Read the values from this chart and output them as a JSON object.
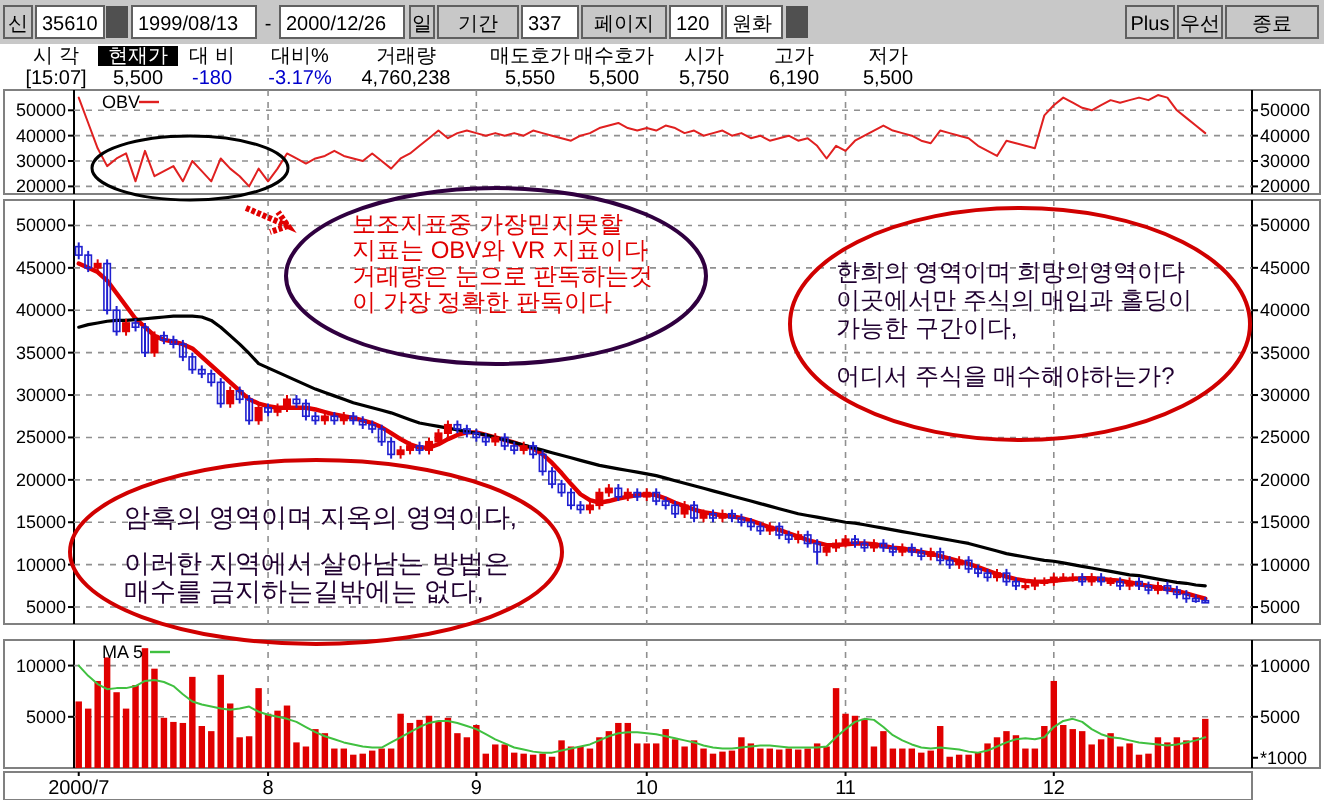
{
  "chart_data": [
    {
      "type": "other",
      "annotations": [
        "신",
        "35610",
        "1999/08/13",
        "-",
        "2000/12/26",
        "일",
        "기간",
        "337",
        "페이지",
        "120",
        "원화",
        "Plus",
        "우선",
        "종료",
        "시 각",
        "현재가",
        "대 비",
        "대비%",
        "거래량",
        "매도호가",
        "매수호가",
        "시가",
        "고가",
        "저가",
        "[15:07]",
        "5,500",
        "-180",
        "-3.17%",
        "4,760,238",
        "5,550",
        "5,500",
        "5,750",
        "6,190",
        "5,500"
      ]
    },
    {
      "type": "line",
      "categories": [
        "2000/7",
        null,
        null,
        null,
        null,
        null,
        null,
        null,
        null,
        null,
        null,
        null,
        null,
        null,
        null,
        null,
        null,
        null,
        null,
        null,
        "8",
        null,
        null,
        null,
        null,
        null,
        null,
        null,
        null,
        null,
        null,
        null,
        null,
        null,
        null,
        null,
        null,
        null,
        null,
        null,
        null,
        null,
        "9",
        null,
        null,
        null,
        null,
        null,
        null,
        null,
        null,
        null,
        null,
        null,
        null,
        null,
        null,
        null,
        null,
        null,
        "10",
        null,
        null,
        null,
        null,
        null,
        null,
        null,
        null,
        null,
        null,
        null,
        null,
        null,
        null,
        null,
        null,
        null,
        null,
        null,
        null,
        "11",
        null,
        null,
        null,
        null,
        null,
        null,
        null,
        null,
        null,
        null,
        null,
        null,
        null,
        null,
        null,
        null,
        null,
        null,
        null,
        null,
        null,
        "12",
        null,
        null,
        null,
        null,
        null,
        null,
        null,
        null,
        null,
        null,
        null,
        null,
        null,
        null,
        null,
        null
      ],
      "series": [
        {
          "name": "OBV",
          "color": "#e02020",
          "values": [
            55000,
            45000,
            35000,
            28000,
            31000,
            33000,
            22000,
            34000,
            24000,
            26000,
            28000,
            22000,
            30000,
            26000,
            22000,
            31000,
            27000,
            24000,
            20000,
            27000,
            22000,
            27000,
            33000,
            31000,
            29000,
            31000,
            32000,
            34000,
            32000,
            31000,
            30000,
            33000,
            30000,
            27000,
            31000,
            33000,
            36000,
            39000,
            42000,
            39000,
            41000,
            42000,
            41000,
            40000,
            41000,
            40000,
            41000,
            40000,
            42000,
            41000,
            40000,
            39000,
            38000,
            40000,
            41000,
            43000,
            44000,
            45000,
            43000,
            42000,
            43000,
            42000,
            44000,
            43000,
            41000,
            42000,
            40000,
            41000,
            42000,
            40000,
            41000,
            39000,
            40000,
            38000,
            39000,
            40000,
            38000,
            39000,
            36000,
            31000,
            36000,
            34000,
            38000,
            40000,
            42000,
            44000,
            42000,
            41000,
            40000,
            38000,
            37000,
            42000,
            41000,
            40000,
            39000,
            36000,
            34000,
            32000,
            38000,
            37000,
            36000,
            35000,
            48000,
            52000,
            55000,
            53000,
            51000,
            50000,
            52000,
            54000,
            53000,
            54000,
            55000,
            54000,
            56000,
            55000,
            50000,
            47000,
            44000,
            41000
          ]
        }
      ],
      "ylim": [
        17000,
        58000
      ],
      "yticks": [
        20000,
        30000,
        40000,
        50000
      ],
      "y2lim": [
        17000,
        58000
      ],
      "y2ticks": [
        20000,
        30000,
        40000,
        50000
      ],
      "grid": true,
      "legend": "top left",
      "tick_labels": "y"
    },
    {
      "type": "candlestick",
      "categories": [
        "2000/7",
        null,
        null,
        null,
        null,
        null,
        null,
        null,
        null,
        null,
        null,
        null,
        null,
        null,
        null,
        null,
        null,
        null,
        null,
        null,
        "8",
        null,
        null,
        null,
        null,
        null,
        null,
        null,
        null,
        null,
        null,
        null,
        null,
        null,
        null,
        null,
        null,
        null,
        null,
        null,
        null,
        null,
        "9",
        null,
        null,
        null,
        null,
        null,
        null,
        null,
        null,
        null,
        null,
        null,
        null,
        null,
        null,
        null,
        null,
        null,
        "10",
        null,
        null,
        null,
        null,
        null,
        null,
        null,
        null,
        null,
        null,
        null,
        null,
        null,
        null,
        null,
        null,
        null,
        null,
        null,
        null,
        "11",
        null,
        null,
        null,
        null,
        null,
        null,
        null,
        null,
        null,
        null,
        null,
        null,
        null,
        null,
        null,
        null,
        null,
        null,
        null,
        null,
        null,
        "12",
        null,
        null,
        null,
        null,
        null,
        null,
        null,
        null,
        null,
        null,
        null,
        null,
        null,
        null,
        null,
        null
      ],
      "ohlc": [
        [
          47500,
          48000,
          46000,
          46500
        ],
        [
          46500,
          47000,
          44500,
          45000
        ],
        [
          45000,
          46000,
          44500,
          45500
        ],
        [
          45500,
          46000,
          39500,
          40000
        ],
        [
          40000,
          40500,
          37000,
          37500
        ],
        [
          37500,
          39000,
          37000,
          38500
        ],
        [
          38500,
          39000,
          37500,
          38000
        ],
        [
          38000,
          38500,
          34500,
          35000
        ],
        [
          35000,
          37500,
          34500,
          37000
        ],
        [
          37000,
          37500,
          36000,
          36500
        ],
        [
          36500,
          37000,
          35500,
          36000
        ],
        [
          36000,
          36500,
          34000,
          34500
        ],
        [
          34500,
          35000,
          32500,
          33000
        ],
        [
          33000,
          33500,
          32000,
          32500
        ],
        [
          32500,
          33000,
          31000,
          31500
        ],
        [
          31500,
          32000,
          28500,
          29000
        ],
        [
          29000,
          31000,
          28500,
          30500
        ],
        [
          30500,
          31000,
          29000,
          29500
        ],
        [
          29500,
          30000,
          26500,
          27000
        ],
        [
          27000,
          29000,
          26500,
          28500
        ],
        [
          28500,
          29000,
          27500,
          28000
        ],
        [
          28000,
          29000,
          27500,
          28500
        ],
        [
          28500,
          30000,
          28000,
          29500
        ],
        [
          29500,
          30000,
          28500,
          29000
        ],
        [
          29000,
          29500,
          27000,
          27500
        ],
        [
          27500,
          28000,
          26500,
          27000
        ],
        [
          27000,
          28000,
          26500,
          27500
        ],
        [
          27500,
          28000,
          26500,
          27000
        ],
        [
          27000,
          28000,
          26500,
          27500
        ],
        [
          27500,
          28000,
          26500,
          27000
        ],
        [
          27000,
          27500,
          26000,
          26500
        ],
        [
          26500,
          27000,
          25500,
          26000
        ],
        [
          26000,
          26500,
          24000,
          24500
        ],
        [
          24500,
          25000,
          22500,
          23000
        ],
        [
          23000,
          24000,
          22500,
          23500
        ],
        [
          23500,
          24500,
          23000,
          24000
        ],
        [
          24000,
          24500,
          23000,
          23500
        ],
        [
          23500,
          25000,
          23000,
          24500
        ],
        [
          24500,
          26000,
          24000,
          25500
        ],
        [
          25500,
          27000,
          25000,
          26500
        ],
        [
          26500,
          27000,
          25500,
          26000
        ],
        [
          26000,
          26500,
          25000,
          25500
        ],
        [
          25500,
          26000,
          24500,
          25000
        ],
        [
          25000,
          25500,
          24000,
          24500
        ],
        [
          24500,
          25500,
          24000,
          25000
        ],
        [
          25000,
          25500,
          23500,
          24000
        ],
        [
          24000,
          24500,
          23000,
          23500
        ],
        [
          23500,
          24500,
          23000,
          24000
        ],
        [
          24000,
          24500,
          22500,
          23000
        ],
        [
          23000,
          23500,
          20500,
          21000
        ],
        [
          21000,
          21500,
          19000,
          19500
        ],
        [
          19500,
          20000,
          18000,
          18500
        ],
        [
          18500,
          19000,
          16500,
          17000
        ],
        [
          17000,
          17500,
          16000,
          16500
        ],
        [
          16500,
          17500,
          16000,
          17000
        ],
        [
          17000,
          19000,
          16500,
          18500
        ],
        [
          18500,
          19500,
          18000,
          19000
        ],
        [
          19000,
          19500,
          17500,
          18000
        ],
        [
          18000,
          19000,
          17500,
          18500
        ],
        [
          18500,
          19000,
          17500,
          18000
        ],
        [
          18000,
          19000,
          17500,
          18500
        ],
        [
          18500,
          19000,
          17000,
          17500
        ],
        [
          17500,
          18000,
          16500,
          17000
        ],
        [
          17000,
          17500,
          15500,
          16000
        ],
        [
          16000,
          17500,
          15500,
          17000
        ],
        [
          17000,
          17500,
          15000,
          15500
        ],
        [
          15500,
          16500,
          15000,
          16000
        ],
        [
          16000,
          16500,
          15000,
          15500
        ],
        [
          15500,
          16500,
          15000,
          16000
        ],
        [
          16000,
          16500,
          15000,
          15500
        ],
        [
          15500,
          16000,
          14500,
          15000
        ],
        [
          15000,
          15500,
          14000,
          14500
        ],
        [
          14500,
          15000,
          13500,
          14000
        ],
        [
          14000,
          15000,
          13500,
          14500
        ],
        [
          14500,
          15000,
          13000,
          13500
        ],
        [
          13500,
          14000,
          12500,
          13000
        ],
        [
          13000,
          14000,
          12500,
          13500
        ],
        [
          13500,
          14000,
          12000,
          12500
        ],
        [
          12500,
          13000,
          10000,
          11500
        ],
        [
          11500,
          12500,
          11000,
          12000
        ],
        [
          12000,
          13000,
          11500,
          12500
        ],
        [
          12500,
          13500,
          12000,
          13000
        ],
        [
          13000,
          13500,
          12000,
          12500
        ],
        [
          12500,
          13000,
          11500,
          12000
        ],
        [
          12000,
          13000,
          11500,
          12500
        ],
        [
          12500,
          13000,
          11500,
          12000
        ],
        [
          12000,
          12500,
          11000,
          11500
        ],
        [
          11500,
          12500,
          11000,
          12000
        ],
        [
          12000,
          12500,
          11000,
          11500
        ],
        [
          11500,
          12000,
          10500,
          11000
        ],
        [
          11000,
          12000,
          10500,
          11500
        ],
        [
          11500,
          12000,
          10000,
          10500
        ],
        [
          10500,
          11000,
          9500,
          10000
        ],
        [
          10000,
          11000,
          9500,
          10500
        ],
        [
          10500,
          11000,
          9000,
          9500
        ],
        [
          9500,
          10000,
          8500,
          9000
        ],
        [
          9000,
          9500,
          8000,
          8500
        ],
        [
          8500,
          9500,
          8000,
          9000
        ],
        [
          9000,
          9500,
          7500,
          8000
        ],
        [
          8000,
          8500,
          7000,
          7500
        ],
        [
          7500,
          8000,
          7000,
          7500
        ],
        [
          7500,
          8500,
          7000,
          8000
        ],
        [
          8000,
          8500,
          7500,
          8000
        ],
        [
          8000,
          9000,
          7500,
          8500
        ],
        [
          8500,
          9000,
          8000,
          8500
        ],
        [
          8500,
          9000,
          8000,
          8500
        ],
        [
          8500,
          9000,
          7500,
          8000
        ],
        [
          8000,
          9000,
          7500,
          8500
        ],
        [
          8500,
          9000,
          7500,
          8000
        ],
        [
          8000,
          8500,
          7500,
          8000
        ],
        [
          8000,
          8500,
          7000,
          7500
        ],
        [
          7500,
          8500,
          7000,
          8000
        ],
        [
          8000,
          8500,
          7000,
          7500
        ],
        [
          7500,
          8000,
          6500,
          7000
        ],
        [
          7000,
          8000,
          6500,
          7500
        ],
        [
          7500,
          8000,
          6500,
          7000
        ],
        [
          7000,
          7500,
          6000,
          6500
        ],
        [
          6500,
          7000,
          5500,
          6000
        ],
        [
          6000,
          6500,
          5500,
          5680
        ],
        [
          5750,
          6190,
          5500,
          5500
        ]
      ],
      "series": [
        {
          "type": "line",
          "color": "#e00000",
          "values": [
            45500,
            45000,
            44500,
            43500,
            42000,
            40500,
            39000,
            38000,
            37000,
            36500,
            36300,
            36000,
            35500,
            34500,
            33500,
            32500,
            31500,
            30500,
            29500,
            29000,
            28700,
            28500,
            28500,
            28500,
            28500,
            28300,
            28000,
            27700,
            27500,
            27300,
            27000,
            26700,
            26200,
            25500,
            24800,
            24200,
            23800,
            23800,
            24200,
            24800,
            25300,
            25600,
            25600,
            25300,
            25000,
            24700,
            24400,
            24000,
            23700,
            23000,
            22000,
            20800,
            19500,
            18300,
            17600,
            17300,
            17500,
            17800,
            18000,
            18200,
            18300,
            18200,
            17800,
            17300,
            16900,
            16500,
            16200,
            16000,
            15800,
            15700,
            15500,
            15200,
            14800,
            14400,
            14100,
            13700,
            13300,
            12900,
            12600,
            12300,
            12300,
            12400,
            12500,
            12500,
            12400,
            12200,
            12000,
            11900,
            11700,
            11500,
            11300,
            11000,
            10700,
            10400,
            10100,
            9700,
            9300,
            8900,
            8600,
            8300,
            8100,
            8000,
            8000,
            8100,
            8200,
            8300,
            8400,
            8400,
            8300,
            8200,
            8100,
            7900,
            7700,
            7500,
            7300,
            7100,
            6900,
            6600,
            6300,
            6000
          ]
        },
        {
          "type": "line",
          "color": "#000000",
          "values": [
            38000,
            38300,
            38500,
            38700,
            38800,
            38800,
            38900,
            39000,
            39100,
            39200,
            39300,
            39300,
            39300,
            39200,
            38800,
            38000,
            37000,
            36000,
            34900,
            33700,
            33200,
            32700,
            32200,
            31700,
            31200,
            30700,
            30300,
            29900,
            29500,
            29100,
            28800,
            28500,
            28200,
            27900,
            27500,
            27100,
            26700,
            26500,
            26300,
            26100,
            25900,
            25700,
            25500,
            25300,
            25000,
            24700,
            24400,
            24100,
            23800,
            23500,
            23200,
            22900,
            22600,
            22300,
            22000,
            21700,
            21500,
            21300,
            21100,
            20900,
            20700,
            20500,
            20200,
            19900,
            19600,
            19300,
            19000,
            18700,
            18400,
            18100,
            17800,
            17500,
            17200,
            16900,
            16600,
            16300,
            16000,
            15800,
            15600,
            15400,
            15200,
            15000,
            14900,
            14700,
            14500,
            14300,
            14100,
            13900,
            13700,
            13500,
            13300,
            13100,
            12900,
            12700,
            12500,
            12200,
            11900,
            11600,
            11300,
            11100,
            10900,
            10700,
            10500,
            10400,
            10200,
            10000,
            9800,
            9600,
            9400,
            9200,
            9000,
            8800,
            8700,
            8500,
            8300,
            8100,
            7900,
            7800,
            7600,
            7500
          ]
        }
      ],
      "ylim": [
        3000,
        53000
      ],
      "yticks": [
        5000,
        10000,
        15000,
        20000,
        25000,
        30000,
        35000,
        40000,
        45000,
        50000
      ],
      "y2lim": [
        3000,
        53000
      ],
      "y2ticks": [
        5000,
        10000,
        15000,
        20000,
        25000,
        30000,
        35000,
        40000,
        45000,
        50000
      ],
      "grid": true,
      "tick_labels": "y",
      "annotations": [
        "보조지표중 가장믿지못할",
        "지표는 OBV와 VR 지표이다",
        "거래량은 눈으로 판독하는것",
        "이 가장 정확한 판독이다",
        "한희의 영역이며 희망의영역이다",
        "이곳에서만 주식의 매입과 홀딩이",
        "가능한 구간이다,",
        "어디서 주식을 매수해야하는가?",
        "암흑의 영역이며 지옥의 영역이다,",
        "이러한 지역에서 살아남는 방법은",
        "매수를 금지하는길밖에는 없다,"
      ]
    },
    {
      "type": "bar",
      "categories": [
        "2000/7",
        null,
        null,
        null,
        null,
        null,
        null,
        null,
        null,
        null,
        null,
        null,
        null,
        null,
        null,
        null,
        null,
        null,
        null,
        null,
        "8",
        null,
        null,
        null,
        null,
        null,
        null,
        null,
        null,
        null,
        null,
        null,
        null,
        null,
        null,
        null,
        null,
        null,
        null,
        null,
        null,
        null,
        "9",
        null,
        null,
        null,
        null,
        null,
        null,
        null,
        null,
        null,
        null,
        null,
        null,
        null,
        null,
        null,
        null,
        null,
        "10",
        null,
        null,
        null,
        null,
        null,
        null,
        null,
        null,
        null,
        null,
        null,
        null,
        null,
        null,
        null,
        null,
        null,
        null,
        null,
        null,
        "11",
        null,
        null,
        null,
        null,
        null,
        null,
        null,
        null,
        null,
        null,
        null,
        null,
        null,
        null,
        null,
        null,
        null,
        null,
        null,
        null,
        null,
        "12",
        null,
        null,
        null,
        null,
        null,
        null,
        null,
        null,
        null,
        null,
        null,
        null,
        null,
        null,
        null,
        null
      ],
      "series": [
        {
          "color": "#e00000",
          "values": [
            6500,
            5800,
            8500,
            10800,
            7400,
            5800,
            8100,
            11700,
            9700,
            4900,
            4500,
            4400,
            8900,
            4100,
            3600,
            9100,
            6300,
            3000,
            3100,
            7800,
            5300,
            5600,
            6100,
            2500,
            2100,
            3800,
            3400,
            1900,
            1900,
            1300,
            1400,
            1700,
            1900,
            1900,
            5300,
            4400,
            4700,
            5100,
            4500,
            4900,
            3400,
            3000,
            4200,
            1400,
            2300,
            2300,
            1500,
            1400,
            1300,
            1400,
            1100,
            2700,
            2100,
            2100,
            1900,
            3000,
            3600,
            4400,
            4400,
            2400,
            2400,
            2400,
            3800,
            2800,
            2100,
            2700,
            1900,
            1400,
            1600,
            1700,
            3000,
            2400,
            1900,
            1900,
            1800,
            1900,
            1800,
            1900,
            2400,
            2100,
            7800,
            5300,
            5100,
            4800,
            2100,
            3600,
            1900,
            1900,
            1900,
            1500,
            1700,
            4100,
            1100,
            1300,
            1300,
            1500,
            2400,
            3000,
            3600,
            3200,
            1900,
            1900,
            4100,
            8500,
            4200,
            3800,
            3600,
            2300,
            2800,
            3400,
            2100,
            2400,
            1300,
            1400,
            3000,
            2500,
            3000,
            2700,
            3000,
            4800
          ]
        },
        {
          "type": "line",
          "name": "MA 5",
          "color": "#40c040",
          "values": [
            10000,
            9000,
            8200,
            7700,
            7800,
            7800,
            8000,
            8500,
            8600,
            8400,
            8000,
            7200,
            6500,
            6200,
            6000,
            5800,
            5700,
            5800,
            6000,
            5500,
            5200,
            5000,
            4800,
            4500,
            4000,
            3500,
            3100,
            2800,
            2500,
            2300,
            2100,
            2000,
            2000,
            2500,
            3000,
            3500,
            4000,
            4400,
            4600,
            4600,
            4400,
            4100,
            3800,
            3300,
            2800,
            2400,
            2000,
            1800,
            1600,
            1500,
            1500,
            1700,
            1900,
            2100,
            2300,
            2700,
            3100,
            3400,
            3500,
            3500,
            3400,
            3300,
            3100,
            2900,
            2700,
            2500,
            2200,
            2000,
            1900,
            1900,
            2000,
            2100,
            2200,
            2200,
            2100,
            2000,
            2000,
            2000,
            2000,
            2100,
            3000,
            3800,
            4500,
            4800,
            4700,
            4000,
            3200,
            2700,
            2300,
            2000,
            1900,
            2000,
            1900,
            1800,
            1600,
            1500,
            1700,
            2100,
            2500,
            2800,
            2900,
            2800,
            3000,
            4000,
            4600,
            4800,
            4500,
            3800,
            3300,
            3000,
            2900,
            2700,
            2500,
            2400,
            2300,
            2200,
            2300,
            2500,
            2700,
            3000
          ]
        }
      ],
      "ylim": [
        0,
        12500
      ],
      "yticks": [
        5000,
        10000
      ],
      "y2lim": [
        0,
        12500
      ],
      "y2ticks": [
        {
          "value": 1000,
          "label": "*1000"
        },
        5000,
        10000
      ],
      "grid": true,
      "legend": "top left"
    }
  ]
}
